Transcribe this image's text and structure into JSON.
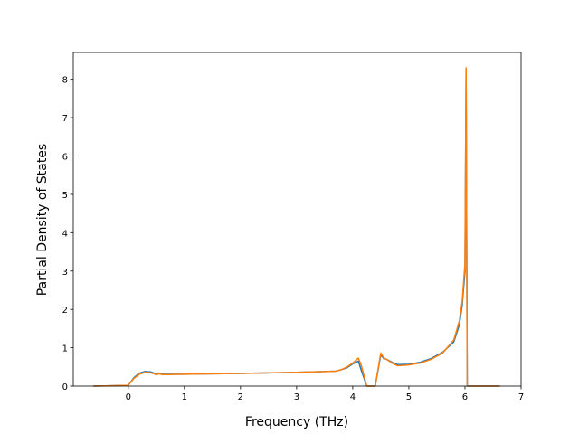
{
  "chart_data": {
    "type": "line",
    "xlabel": "Frequency (THz)",
    "ylabel": "Partial Density of States",
    "x": [
      -0.62,
      0,
      0.1,
      0.2,
      0.3,
      0.4,
      0.5,
      0.55,
      0.6,
      0.7,
      1,
      2,
      3,
      3.5,
      3.7,
      3.8,
      3.9,
      4.0,
      4.1,
      4.15,
      4.25,
      4.4,
      4.5,
      4.55,
      4.6,
      4.7,
      4.8,
      5,
      5.2,
      5.4,
      5.6,
      5.8,
      5.9,
      5.95,
      6.0,
      6.02,
      6.04,
      6.1,
      6.62
    ],
    "series": [
      {
        "color": "#1f77b4",
        "values": [
          0,
          0.02,
          0.22,
          0.34,
          0.38,
          0.37,
          0.32,
          0.34,
          0.31,
          0.31,
          0.31,
          0.33,
          0.36,
          0.38,
          0.39,
          0.43,
          0.48,
          0.58,
          0.65,
          0.42,
          0,
          0,
          0.82,
          0.72,
          0.7,
          0.62,
          0.56,
          0.57,
          0.62,
          0.72,
          0.88,
          1.15,
          1.6,
          2.1,
          3.0,
          8.2,
          0,
          0,
          0
        ]
      },
      {
        "color": "#ff7f0e",
        "values": [
          0,
          0.02,
          0.2,
          0.31,
          0.36,
          0.35,
          0.3,
          0.32,
          0.3,
          0.3,
          0.31,
          0.33,
          0.36,
          0.38,
          0.39,
          0.43,
          0.5,
          0.6,
          0.73,
          0.55,
          0,
          0,
          0.86,
          0.74,
          0.7,
          0.6,
          0.53,
          0.55,
          0.6,
          0.7,
          0.86,
          1.2,
          1.7,
          2.2,
          3.2,
          8.3,
          0,
          0,
          0
        ]
      }
    ],
    "xlim": [
      -0.98,
      7
    ],
    "ylim": [
      0,
      8.7
    ],
    "xticks": [
      0,
      1,
      2,
      3,
      4,
      5,
      6,
      7
    ],
    "yticks": [
      0,
      1,
      2,
      3,
      4,
      5,
      6,
      7,
      8
    ]
  }
}
